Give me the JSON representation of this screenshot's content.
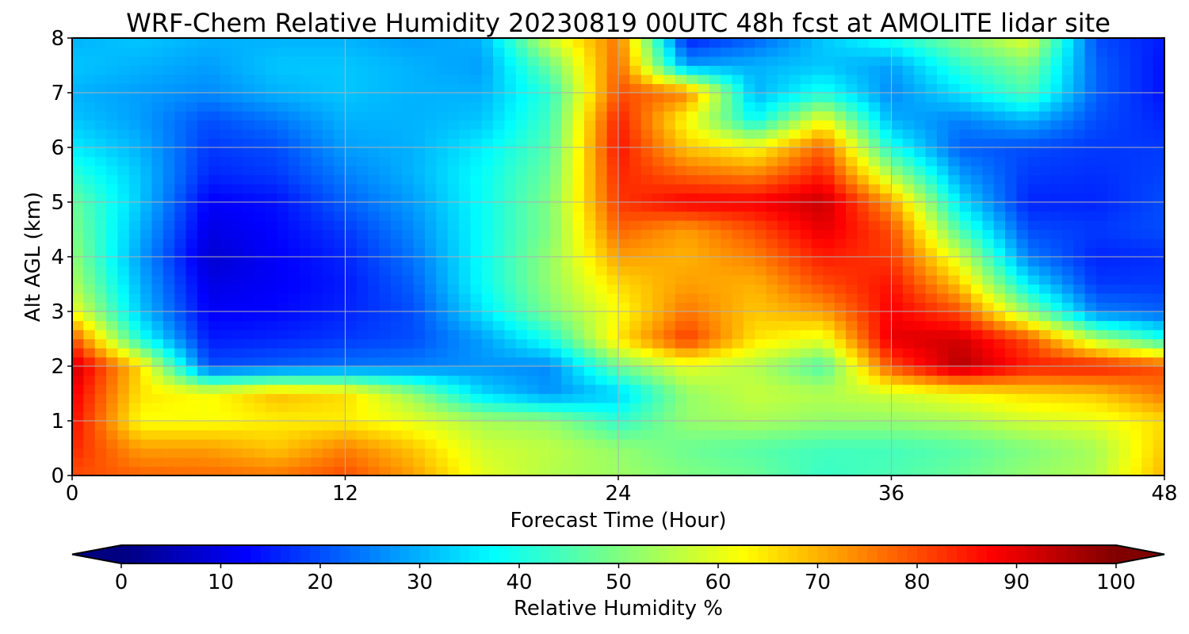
{
  "chart_data": {
    "type": "heatmap",
    "title": "WRF-Chem Relative Humidity 20230819 00UTC 48h fcst at AMOLITE lidar site",
    "xlabel": "Forecast Time (Hour)",
    "ylabel": "Alt AGL (km)",
    "xlim": [
      0,
      48
    ],
    "ylim": [
      0,
      8
    ],
    "x_ticks": [
      0,
      12,
      24,
      36,
      48
    ],
    "y_ticks": [
      0,
      1,
      2,
      3,
      4,
      5,
      6,
      7,
      8
    ],
    "grid": true,
    "colorbar": {
      "label": "Relative Humidity %",
      "colormap": "jet",
      "range": [
        0,
        100
      ],
      "ticks": [
        0,
        10,
        20,
        30,
        40,
        50,
        60,
        70,
        80,
        90,
        100
      ],
      "orientation": "horizontal",
      "extend": "both"
    },
    "x": [
      0,
      3,
      6,
      9,
      12,
      15,
      18,
      21,
      24,
      27,
      30,
      33,
      36,
      39,
      42,
      45,
      48
    ],
    "y": [
      0,
      0.5,
      1,
      1.5,
      2,
      2.5,
      3,
      3.5,
      4,
      4.5,
      5,
      5.5,
      6,
      6.5,
      7,
      7.5,
      8
    ],
    "z": [
      [
        80,
        78,
        77,
        76,
        80,
        72,
        60,
        55,
        53,
        50,
        48,
        43,
        45,
        48,
        52,
        55,
        70
      ],
      [
        84,
        72,
        72,
        68,
        75,
        68,
        58,
        56,
        52,
        48,
        46,
        44,
        44,
        46,
        50,
        54,
        68
      ],
      [
        87,
        62,
        62,
        64,
        64,
        60,
        54,
        52,
        42,
        52,
        54,
        52,
        52,
        54,
        58,
        60,
        66
      ],
      [
        89,
        65,
        62,
        69,
        66,
        52,
        34,
        27,
        33,
        52,
        57,
        55,
        58,
        62,
        66,
        68,
        76
      ],
      [
        93,
        66,
        20,
        22,
        24,
        25,
        27,
        26,
        48,
        60,
        55,
        45,
        80,
        95,
        85,
        85,
        80
      ],
      [
        80,
        40,
        15,
        16,
        18,
        20,
        28,
        40,
        65,
        82,
        65,
        60,
        90,
        92,
        80,
        55,
        40
      ],
      [
        62,
        32,
        12,
        13,
        16,
        20,
        35,
        50,
        62,
        76,
        68,
        72,
        88,
        80,
        52,
        25,
        22
      ],
      [
        55,
        30,
        10,
        12,
        15,
        22,
        38,
        52,
        66,
        72,
        70,
        80,
        86,
        68,
        36,
        18,
        18
      ],
      [
        52,
        28,
        8,
        12,
        16,
        24,
        38,
        52,
        72,
        70,
        75,
        85,
        82,
        58,
        25,
        16,
        17
      ],
      [
        50,
        30,
        10,
        13,
        18,
        26,
        38,
        50,
        78,
        72,
        80,
        90,
        80,
        45,
        20,
        18,
        20
      ],
      [
        48,
        32,
        12,
        14,
        22,
        28,
        38,
        50,
        82,
        88,
        88,
        93,
        72,
        35,
        16,
        16,
        20
      ],
      [
        42,
        32,
        16,
        18,
        25,
        30,
        38,
        48,
        84,
        78,
        75,
        85,
        55,
        28,
        18,
        17,
        19
      ],
      [
        36,
        30,
        18,
        20,
        28,
        30,
        36,
        46,
        86,
        68,
        62,
        78,
        40,
        22,
        20,
        18,
        18
      ],
      [
        32,
        28,
        20,
        24,
        30,
        30,
        32,
        44,
        85,
        62,
        38,
        62,
        30,
        25,
        30,
        20,
        16
      ],
      [
        30,
        28,
        26,
        30,
        32,
        30,
        30,
        42,
        80,
        75,
        30,
        40,
        26,
        35,
        45,
        22,
        14
      ],
      [
        32,
        30,
        28,
        32,
        32,
        30,
        28,
        48,
        78,
        28,
        30,
        32,
        28,
        42,
        50,
        22,
        14
      ],
      [
        30,
        32,
        30,
        30,
        30,
        28,
        30,
        58,
        76,
        15,
        22,
        32,
        40,
        50,
        60,
        20,
        15
      ]
    ]
  }
}
